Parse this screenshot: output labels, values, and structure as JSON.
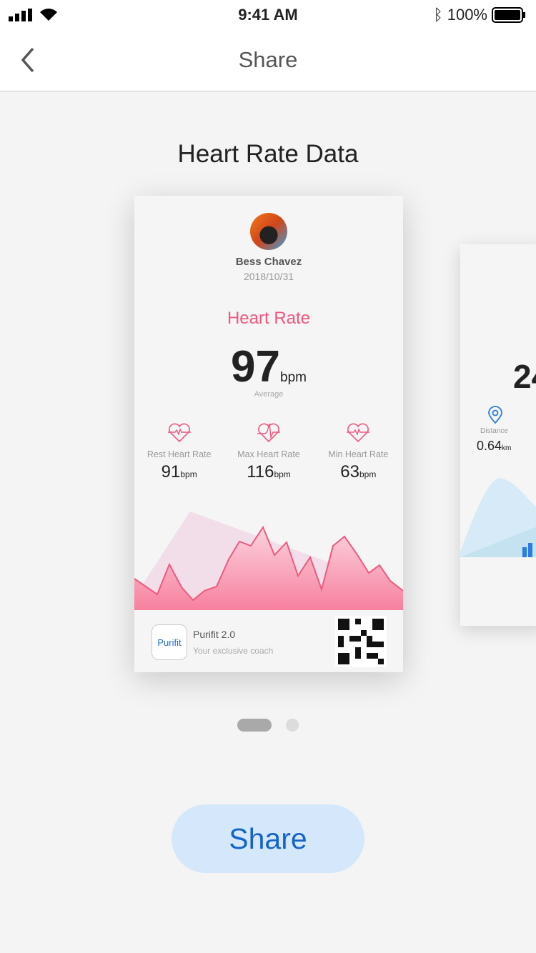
{
  "status_bar": {
    "time": "9:41 AM",
    "battery": "100%"
  },
  "nav": {
    "title": "Share"
  },
  "page_title": "Heart Rate Data",
  "card": {
    "user_name": "Bess Chavez",
    "date": "2018/10/31",
    "section_title": "Heart Rate",
    "average_value": "97",
    "average_unit": "bpm",
    "average_label": "Average",
    "stats": [
      {
        "label": "Rest Heart Rate",
        "value": "91",
        "unit": "bpm",
        "icon": "heart-pulse-icon"
      },
      {
        "label": "Max Heart Rate",
        "value": "116",
        "unit": "bpm",
        "icon": "heart-pulse-icon"
      },
      {
        "label": "Min Heart Rate",
        "value": "63",
        "unit": "bpm",
        "icon": "heart-pulse-icon"
      }
    ],
    "accent_color": "#f0587e",
    "app_logo": "Purifit",
    "app_name": "Purifit 2.0",
    "app_tagline": "Your exclusive coach"
  },
  "card2": {
    "value_partial": "24",
    "distance_label": "Distance",
    "distance_value": "0.64",
    "distance_unit": "km",
    "accent_color": "#2a7de1"
  },
  "pager": {
    "pages": 2,
    "current": 1
  },
  "share_button": "Share"
}
